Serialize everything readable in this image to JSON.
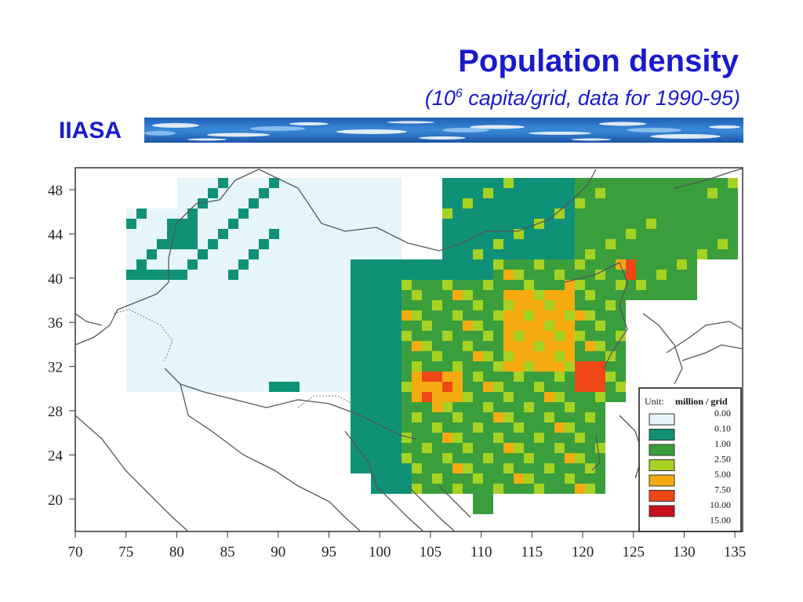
{
  "header": {
    "title": "Population density",
    "subtitle_prefix": "(10",
    "subtitle_sup": "6",
    "subtitle_suffix": " capita/grid, data for 1990-95)",
    "logo": "IIASA"
  },
  "map": {
    "x_ticks": [
      "70",
      "75",
      "80",
      "85",
      "90",
      "95",
      "100",
      "105",
      "110",
      "115",
      "120",
      "125",
      "130",
      "135"
    ],
    "y_ticks": [
      "48",
      "44",
      "40",
      "36",
      "32",
      "28",
      "24",
      "20"
    ],
    "legend": {
      "title_prefix": "Unit:",
      "title_bold": "million / grid",
      "entries": [
        {
          "label": "0.00",
          "color": "#e6f5fa"
        },
        {
          "label": "0.10",
          "color": "#0f9178"
        },
        {
          "label": "1.00",
          "color": "#3a9e3c"
        },
        {
          "label": "2.50",
          "color": "#a6d223"
        },
        {
          "label": "5.00",
          "color": "#f5ab10"
        },
        {
          "label": "7.50",
          "color": "#ef4616"
        },
        {
          "label": "10.00",
          "color": "#c8101e"
        },
        {
          "label": "15.00",
          "color": ""
        }
      ]
    }
  }
}
